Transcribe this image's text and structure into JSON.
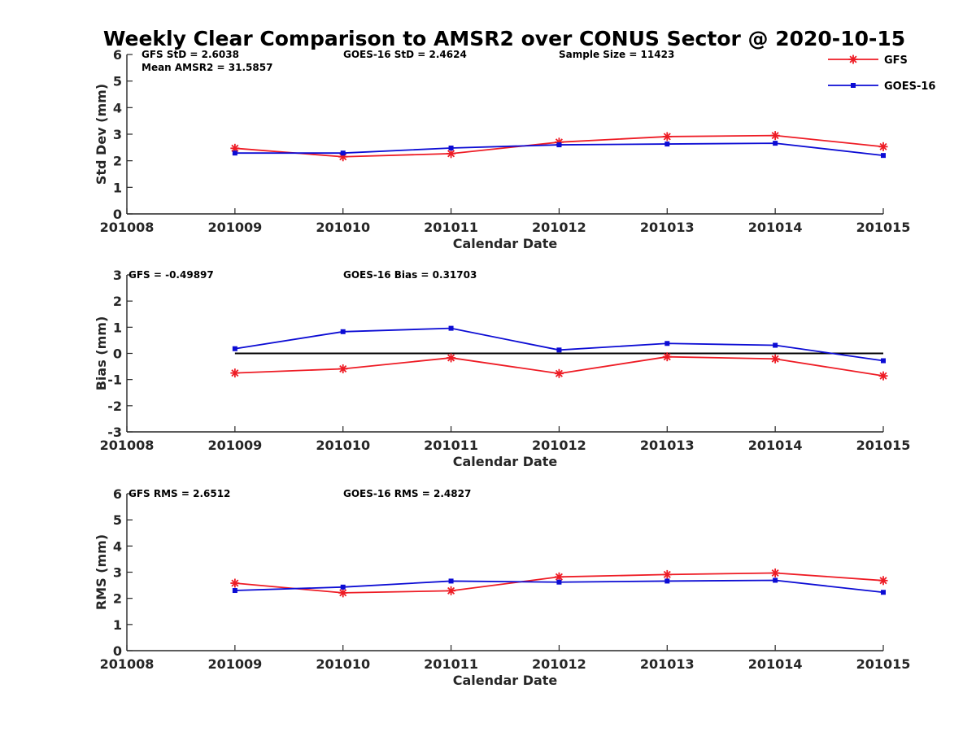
{
  "title": "Weekly Clear Comparison to AMSR2 over CONUS Sector @ 2020-10-15",
  "colors": {
    "gfs": "#ee1c25",
    "goes": "#0c0cd4",
    "zero_line": "#000000",
    "axis": "#262626"
  },
  "legend": [
    {
      "name": "GFS",
      "color": "#ee1c25",
      "marker": "asterisk"
    },
    {
      "name": "GOES-16",
      "color": "#0c0cd4",
      "marker": "square"
    }
  ],
  "chart_data": [
    {
      "type": "line",
      "title": "Weekly Clear Comparison to AMSR2 over CONUS Sector @ 2020-10-15",
      "xlabel": "Calendar Date",
      "ylabel": "Std Dev (mm)",
      "ylim": [
        0,
        6
      ],
      "yticks": [
        "0",
        "1",
        "2",
        "3",
        "4",
        "5",
        "6"
      ],
      "categories": [
        "201008",
        "201009",
        "201010",
        "201011",
        "201012",
        "201013",
        "201014",
        "201015"
      ],
      "annotations": [
        "GFS StD = 2.6038",
        "GOES-16 StD = 2.4624",
        "Sample Size = 11423",
        "Mean AMSR2 = 31.5857"
      ],
      "series": [
        {
          "name": "GFS",
          "x": [
            "201009",
            "201010",
            "201011",
            "201012",
            "201013",
            "201014",
            "201015"
          ],
          "values": [
            2.47,
            2.15,
            2.27,
            2.7,
            2.91,
            2.95,
            2.53
          ]
        },
        {
          "name": "GOES-16",
          "x": [
            "201009",
            "201010",
            "201011",
            "201012",
            "201013",
            "201014",
            "201015"
          ],
          "values": [
            2.29,
            2.29,
            2.48,
            2.6,
            2.63,
            2.66,
            2.2
          ]
        }
      ]
    },
    {
      "type": "line",
      "xlabel": "Calendar Date",
      "ylabel": "Bias (mm)",
      "ylim": [
        -3,
        3
      ],
      "yticks": [
        "-3",
        "-2",
        "-1",
        "0",
        "1",
        "2",
        "3"
      ],
      "zero_line": true,
      "categories": [
        "201008",
        "201009",
        "201010",
        "201011",
        "201012",
        "201013",
        "201014",
        "201015"
      ],
      "annotations": [
        "GFS = -0.49897",
        "GOES-16 Bias  = 0.31703"
      ],
      "series": [
        {
          "name": "GFS",
          "x": [
            "201009",
            "201010",
            "201011",
            "201012",
            "201013",
            "201014",
            "201015"
          ],
          "values": [
            -0.75,
            -0.59,
            -0.17,
            -0.77,
            -0.13,
            -0.21,
            -0.86
          ]
        },
        {
          "name": "GOES-16",
          "x": [
            "201009",
            "201010",
            "201011",
            "201012",
            "201013",
            "201014",
            "201015"
          ],
          "values": [
            0.18,
            0.83,
            0.96,
            0.13,
            0.38,
            0.31,
            -0.28
          ]
        }
      ]
    },
    {
      "type": "line",
      "xlabel": "Calendar Date",
      "ylabel": "RMS (mm)",
      "ylim": [
        0,
        6
      ],
      "yticks": [
        "0",
        "1",
        "2",
        "3",
        "4",
        "5",
        "6"
      ],
      "categories": [
        "201008",
        "201009",
        "201010",
        "201011",
        "201012",
        "201013",
        "201014",
        "201015"
      ],
      "annotations": [
        "GFS RMS = 2.6512",
        "GOES-16 RMS = 2.4827"
      ],
      "series": [
        {
          "name": "GFS",
          "x": [
            "201009",
            "201010",
            "201011",
            "201012",
            "201013",
            "201014",
            "201015"
          ],
          "values": [
            2.58,
            2.21,
            2.29,
            2.82,
            2.91,
            2.97,
            2.68
          ]
        },
        {
          "name": "GOES-16",
          "x": [
            "201009",
            "201010",
            "201011",
            "201012",
            "201013",
            "201014",
            "201015"
          ],
          "values": [
            2.3,
            2.43,
            2.66,
            2.62,
            2.66,
            2.69,
            2.23
          ]
        }
      ]
    }
  ]
}
